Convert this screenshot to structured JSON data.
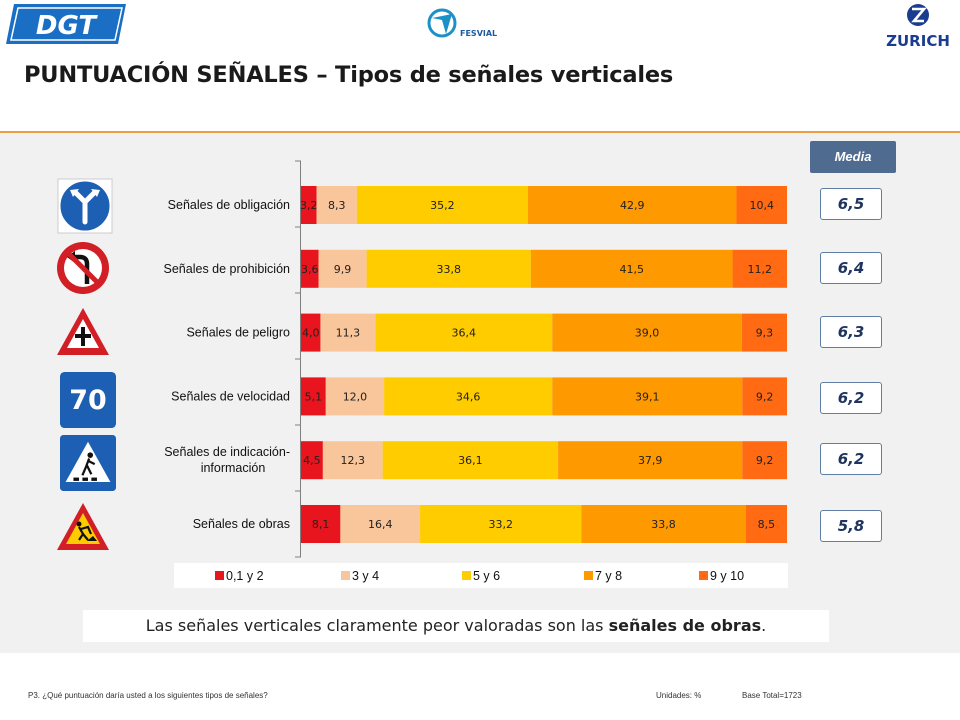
{
  "header": {
    "logo_left": "DGT",
    "logo_center": "FESVIAL",
    "logo_right": "ZURICH",
    "title": "PUNTUACIÓN SEÑALES – Tipos de señales verticales"
  },
  "media": {
    "label": "Media",
    "values": [
      "6,5",
      "6,4",
      "6,3",
      "6,2",
      "6,2",
      "5,8"
    ]
  },
  "callout": {
    "text_prefix": "Las señales verticales claramente peor valoradas son las ",
    "text_bold": "señales de obras",
    "text_suffix": "."
  },
  "footer": {
    "question": "P3. ¿Qué puntuación daría usted a los siguientes tipos de señales?",
    "units": "Unidades: %",
    "base": "Base Total=1723"
  },
  "icons": [
    "turn-direction-sign-icon",
    "no-left-turn-sign-icon",
    "danger-intersection-sign-icon",
    "speed-limit-70-sign-icon",
    "pedestrian-crossing-sign-icon",
    "road-works-sign-icon"
  ],
  "speed_sign_text": "70",
  "colors": {
    "s1": "#e8141e",
    "s2": "#f9c59a",
    "s3": "#ffcc00",
    "s4": "#ff9900",
    "s5": "#ff6a13",
    "media_header": "#4f6b8f"
  },
  "chart_data": {
    "type": "bar",
    "orientation": "horizontal",
    "stacked": true,
    "categories": [
      [
        "Señales de obligación"
      ],
      [
        "Señales de prohibición"
      ],
      [
        "Señales de peligro"
      ],
      [
        "Señales de velocidad"
      ],
      [
        "Señales de indicación-",
        "información"
      ],
      [
        "Señales de obras"
      ]
    ],
    "series": [
      {
        "name": "0,1 y 2",
        "values": [
          3.2,
          3.6,
          4.0,
          5.1,
          4.5,
          8.1
        ],
        "labels": [
          "3,2",
          "3,6",
          "4,0",
          "5,1",
          "4,5",
          "8,1"
        ]
      },
      {
        "name": "3 y 4",
        "values": [
          8.3,
          9.9,
          11.3,
          12.0,
          12.3,
          16.4
        ],
        "labels": [
          "8,3",
          "9,9",
          "11,3",
          "12,0",
          "12,3",
          "16,4"
        ]
      },
      {
        "name": "5 y 6",
        "values": [
          35.2,
          33.8,
          36.4,
          34.6,
          36.1,
          33.2
        ],
        "labels": [
          "35,2",
          "33,8",
          "36,4",
          "34,6",
          "36,1",
          "33,2"
        ]
      },
      {
        "name": "7 y 8",
        "values": [
          42.9,
          41.5,
          39.0,
          39.1,
          37.9,
          33.8
        ],
        "labels": [
          "42,9",
          "41,5",
          "39,0",
          "39,1",
          "37,9",
          "33,8"
        ]
      },
      {
        "name": "9 y 10",
        "values": [
          10.4,
          11.2,
          9.3,
          9.2,
          9.2,
          8.5
        ],
        "labels": [
          "10,4",
          "11,2",
          "9,3",
          "9,2",
          "9,2",
          "8,5"
        ]
      }
    ],
    "xlim": [
      0,
      100
    ],
    "legend_position": "bottom"
  }
}
